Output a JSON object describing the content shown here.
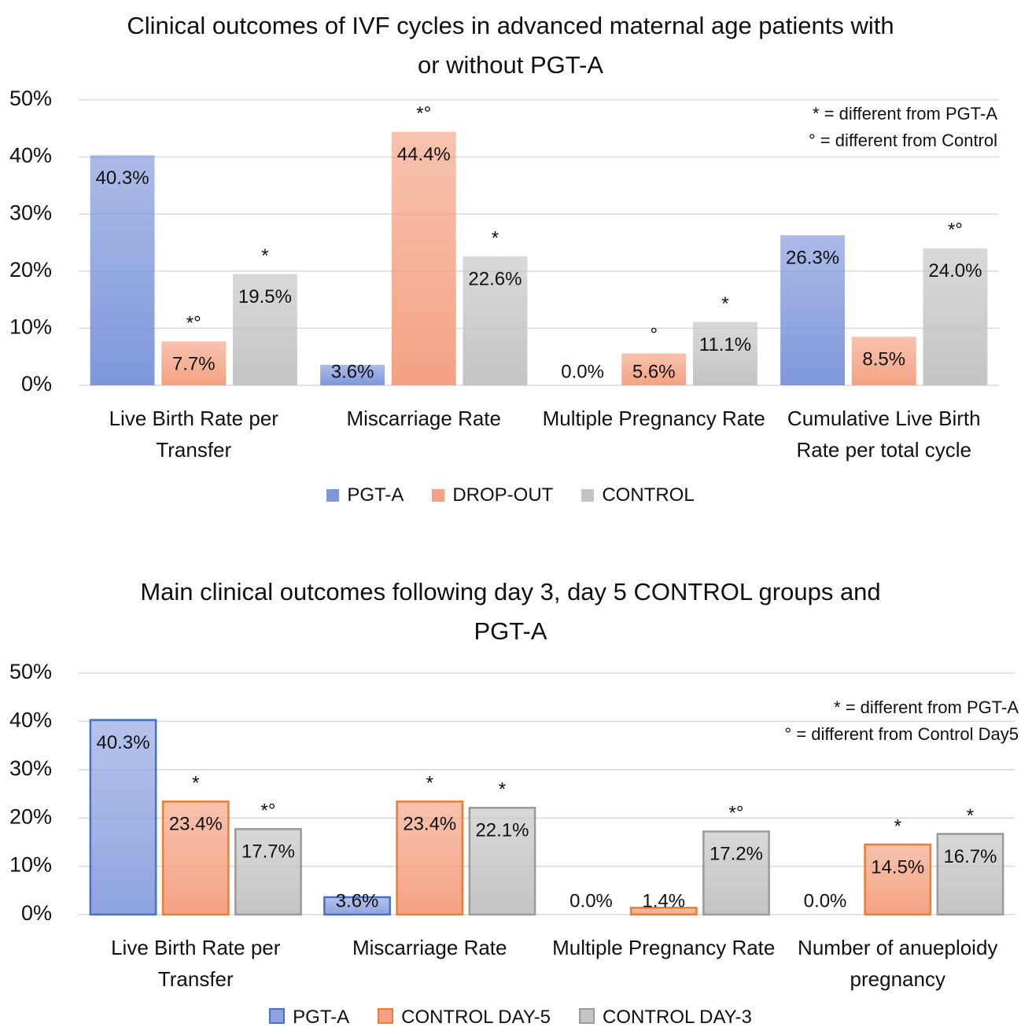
{
  "chart_data": [
    {
      "type": "bar",
      "title": "Clinical outcomes of IVF cycles in advanced maternal age patients with or without PGT-A",
      "categories": [
        "Live Birth Rate per Transfer",
        "Miscarriage Rate",
        "Multiple Pregnancy Rate",
        "Cumulative Live Birth Rate per total cycle"
      ],
      "series": [
        {
          "name": "PGT-A",
          "color": "#7f97db",
          "values": [
            40.3,
            3.6,
            0.0,
            26.3
          ],
          "value_labels": [
            "40.3%",
            "3.6%",
            "0.0%",
            "26.3%"
          ]
        },
        {
          "name": "DROP-OUT",
          "color": "#f4a283",
          "values": [
            7.7,
            44.4,
            5.6,
            8.5
          ],
          "value_labels": [
            "7.7%",
            "44.4%",
            "5.6%",
            "8.5%"
          ],
          "markers": [
            "*°",
            "*°",
            "°",
            null
          ]
        },
        {
          "name": "CONTROL",
          "color": "#c4c4c4",
          "values": [
            19.5,
            22.6,
            11.1,
            24.0
          ],
          "value_labels": [
            "19.5%",
            "22.6%",
            "11.1%",
            "24.0%"
          ],
          "markers": [
            "*",
            "*",
            "*",
            "*°"
          ]
        }
      ],
      "annotations": [
        "* = different from PGT-A",
        "° = different from Control"
      ],
      "ylim": [
        0,
        50
      ],
      "yticks": [
        {
          "value": 0,
          "label": "0%"
        },
        {
          "value": 10,
          "label": "10%"
        },
        {
          "value": 20,
          "label": "20%"
        },
        {
          "value": 30,
          "label": "30%"
        },
        {
          "value": 40,
          "label": "40%"
        },
        {
          "value": 50,
          "label": "50%"
        }
      ],
      "grid": true
    },
    {
      "type": "bar",
      "title": "Main clinical outcomes following day 3, day 5 CONTROL groups and PGT-A",
      "categories": [
        "Live Birth Rate per Transfer",
        "Miscarriage Rate",
        "Multiple Pregnancy Rate",
        "Number of anueploidy pregnancy"
      ],
      "series": [
        {
          "name": "PGT-A",
          "color": "#8ea3e0",
          "edgecolor": "#4472c4",
          "values": [
            40.3,
            3.6,
            0.0,
            0.0
          ],
          "value_labels": [
            "40.3%",
            "3.6%",
            "0.0%",
            "0.0%"
          ]
        },
        {
          "name": "CONTROL DAY-5",
          "color": "#f4a283",
          "edgecolor": "#ed7d31",
          "values": [
            23.4,
            23.4,
            1.4,
            14.5
          ],
          "value_labels": [
            "23.4%",
            "23.4%",
            "1.4%",
            "14.5%"
          ],
          "markers": [
            "*",
            "*",
            null,
            "*"
          ]
        },
        {
          "name": "CONTROL DAY-3",
          "color": "#c4c4c4",
          "edgecolor": "#9a9a9a",
          "values": [
            17.7,
            22.1,
            17.2,
            16.7
          ],
          "value_labels": [
            "17.7%",
            "22.1%",
            "17.2%",
            "16.7%"
          ],
          "markers": [
            "*°",
            "*",
            "*°",
            "*"
          ]
        }
      ],
      "annotations": [
        "* = different from PGT-A",
        "° = different from Control Day5"
      ],
      "ylim": [
        0,
        50
      ],
      "yticks": [
        {
          "value": 0,
          "label": "0%"
        },
        {
          "value": 10,
          "label": "10%"
        },
        {
          "value": 20,
          "label": "20%"
        },
        {
          "value": 30,
          "label": "30%"
        },
        {
          "value": 40,
          "label": "40%"
        },
        {
          "value": 50,
          "label": "50%"
        }
      ],
      "grid": true
    }
  ]
}
